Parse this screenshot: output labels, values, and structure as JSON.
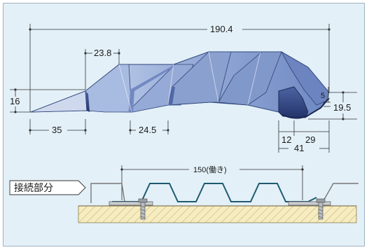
{
  "dimensions": {
    "overall_width": "190.4",
    "crest_width": "23.8",
    "valley_width": "24.5",
    "edge_width": "35",
    "height_left": "16",
    "height_right": "19.5",
    "lip": "5",
    "hook_12": "12",
    "hook_29": "29",
    "hook_41": "41"
  },
  "connection": {
    "label": "接続部分",
    "working_width": "150(働き)"
  },
  "colors": {
    "background": "#e3f0f8",
    "panel_light": "#c4d3ea",
    "panel_mid": "#7d97cb",
    "panel_dark": "#3e5596",
    "profile_line": "#1f5a6e",
    "substrate": "#f6ecc0"
  }
}
